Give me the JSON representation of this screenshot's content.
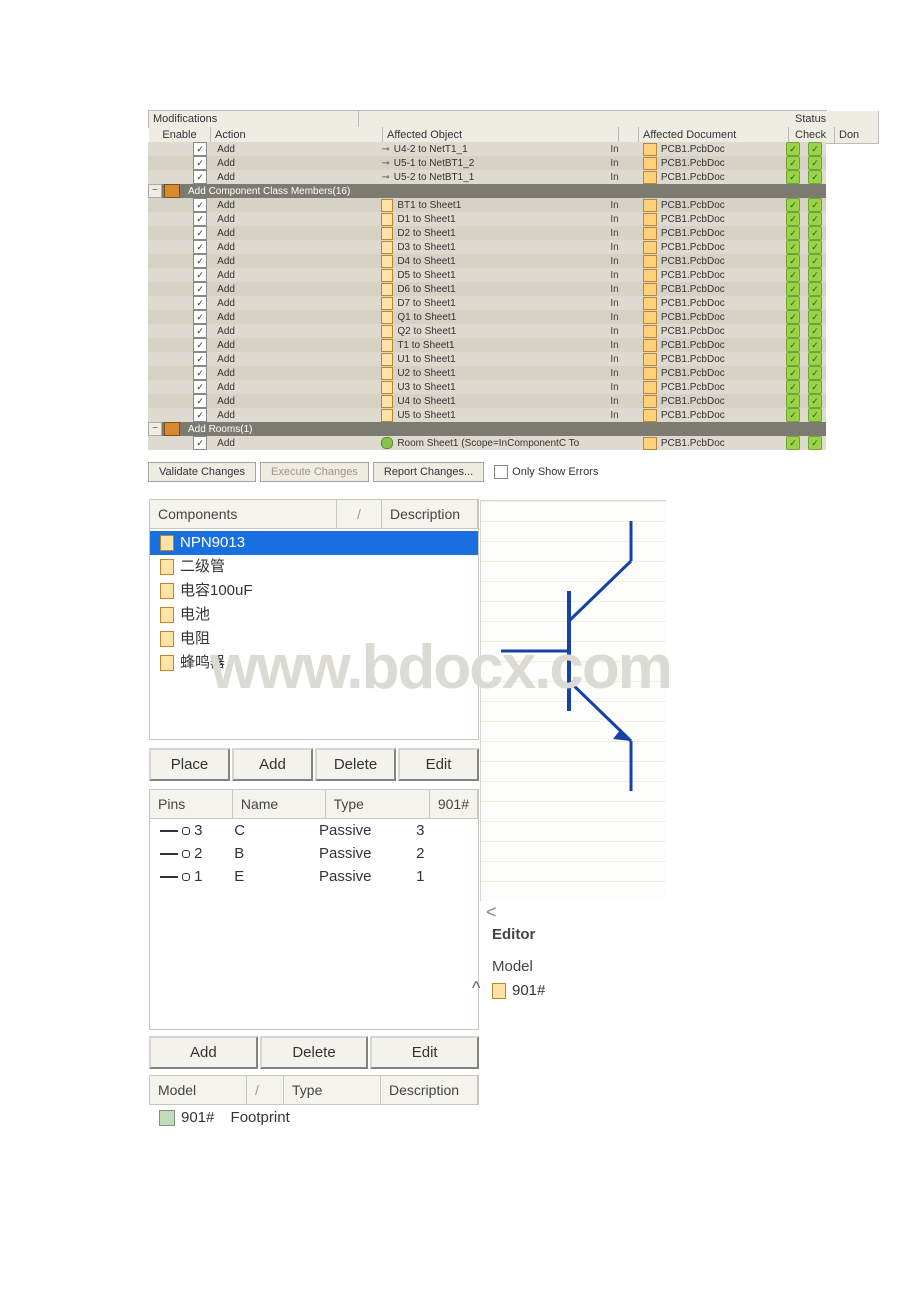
{
  "headers": {
    "mods": "Modifications",
    "enable": "Enable",
    "action": "Action",
    "obj": "Affected Object",
    "doc": "Affected Document",
    "status": "Status",
    "check": "Check",
    "done": "Don"
  },
  "group1": "Add Component Class Members(16)",
  "group2": "Add Rooms(1)",
  "pre_rows": [
    {
      "action": "Add",
      "obj": "U4-2 to NetT1_1",
      "in": "In",
      "doc": "PCB1.PcbDoc",
      "ico": "net"
    },
    {
      "action": "Add",
      "obj": "U5-1 to NetBT1_2",
      "in": "In",
      "doc": "PCB1.PcbDoc",
      "ico": "net"
    },
    {
      "action": "Add",
      "obj": "U5-2 to NetBT1_1",
      "in": "In",
      "doc": "PCB1.PcbDoc",
      "ico": "net"
    }
  ],
  "rows": [
    {
      "action": "Add",
      "obj": "BT1 to Sheet1",
      "in": "In",
      "doc": "PCB1.PcbDoc"
    },
    {
      "action": "Add",
      "obj": "D1 to Sheet1",
      "in": "In",
      "doc": "PCB1.PcbDoc"
    },
    {
      "action": "Add",
      "obj": "D2 to Sheet1",
      "in": "In",
      "doc": "PCB1.PcbDoc"
    },
    {
      "action": "Add",
      "obj": "D3 to Sheet1",
      "in": "In",
      "doc": "PCB1.PcbDoc"
    },
    {
      "action": "Add",
      "obj": "D4 to Sheet1",
      "in": "In",
      "doc": "PCB1.PcbDoc"
    },
    {
      "action": "Add",
      "obj": "D5 to Sheet1",
      "in": "In",
      "doc": "PCB1.PcbDoc"
    },
    {
      "action": "Add",
      "obj": "D6 to Sheet1",
      "in": "In",
      "doc": "PCB1.PcbDoc"
    },
    {
      "action": "Add",
      "obj": "D7 to Sheet1",
      "in": "In",
      "doc": "PCB1.PcbDoc"
    },
    {
      "action": "Add",
      "obj": "Q1 to Sheet1",
      "in": "In",
      "doc": "PCB1.PcbDoc"
    },
    {
      "action": "Add",
      "obj": "Q2 to Sheet1",
      "in": "In",
      "doc": "PCB1.PcbDoc"
    },
    {
      "action": "Add",
      "obj": "T1 to Sheet1",
      "in": "In",
      "doc": "PCB1.PcbDoc"
    },
    {
      "action": "Add",
      "obj": "U1 to Sheet1",
      "in": "In",
      "doc": "PCB1.PcbDoc"
    },
    {
      "action": "Add",
      "obj": "U2 to Sheet1",
      "in": "In",
      "doc": "PCB1.PcbDoc"
    },
    {
      "action": "Add",
      "obj": "U3 to Sheet1",
      "in": "In",
      "doc": "PCB1.PcbDoc"
    },
    {
      "action": "Add",
      "obj": "U4 to Sheet1",
      "in": "In",
      "doc": "PCB1.PcbDoc"
    },
    {
      "action": "Add",
      "obj": "U5 to Sheet1",
      "in": "In",
      "doc": "PCB1.PcbDoc"
    }
  ],
  "room_row": {
    "action": "Add",
    "obj": "Room Sheet1 (Scope=InComponentC To",
    "in": "",
    "doc": "PCB1.PcbDoc"
  },
  "buttons": {
    "validate": "Validate Changes",
    "execute": "Execute Changes",
    "report": "Report Changes...",
    "onlyerr": "Only Show Errors"
  },
  "lib": {
    "col_comp": "Components",
    "col_slash": "/",
    "col_desc": "Description",
    "items": [
      "NPN9013",
      "二级管",
      "电容100uF",
      "电池",
      "电阻",
      "蜂鸣器"
    ],
    "btns": {
      "place": "Place",
      "add": "Add",
      "delete": "Delete",
      "edit": "Edit"
    },
    "pins_hdr": {
      "pins": "Pins",
      "name": "Name",
      "type": "Type",
      "num": "901#"
    },
    "pins": [
      {
        "pin": "3",
        "name": "C",
        "type": "Passive",
        "num": "3"
      },
      {
        "pin": "2",
        "name": "B",
        "type": "Passive",
        "num": "2"
      },
      {
        "pin": "1",
        "name": "E",
        "type": "Passive",
        "num": "1"
      }
    ],
    "btns2": {
      "add": "Add",
      "delete": "Delete",
      "edit": "Edit"
    },
    "mdl_hdr": {
      "model": "Model",
      "slash": "/",
      "type": "Type",
      "desc": "Description"
    },
    "mdl_row": {
      "name": "901#",
      "type": "Footprint"
    }
  },
  "right": {
    "editor": "Editor",
    "model": "Model",
    "item": "901#",
    "scroll": "<"
  },
  "wm": "www.bdocx.com"
}
